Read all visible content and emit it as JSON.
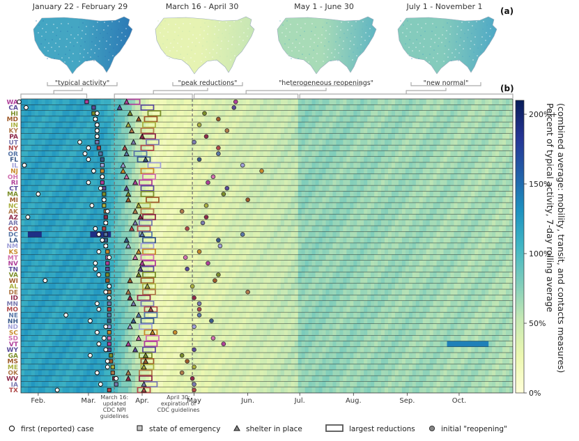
{
  "panel_a": {
    "label": "(a)",
    "maps": [
      {
        "title": "January 22 - February 29",
        "caption": "\"typical activity\"",
        "tone": "#44a6c3",
        "east": "#2b78b5"
      },
      {
        "title": "March 16 - April 30",
        "caption": "\"peak reductions\"",
        "tone": "#e6f3b2",
        "east": "#c6e6b4"
      },
      {
        "title": "May 1 - June 30",
        "caption": "\"heterogeneous reopenings\"",
        "tone": "#a8dbb7",
        "east": "#5fb5c2"
      },
      {
        "title": "July 1 - November 1",
        "caption": "\"new normal\"",
        "tone": "#84cbbc",
        "east": "#4ea8c5"
      }
    ]
  },
  "panel_b": {
    "label": "(b)"
  },
  "colors": {
    "cmap": [
      "#ffffd9",
      "#edf8b1",
      "#c7e9b4",
      "#7fcdbb",
      "#41b6c4",
      "#1d91c0",
      "#225ea8",
      "#253494",
      "#081d58"
    ],
    "palette": [
      "#b0409a",
      "#5a4b9a",
      "#7b8e2a",
      "#9e5a2a",
      "#aab040",
      "#b07a4a",
      "#8e2a4a",
      "#7a7ab0",
      "#b04a4a",
      "#5a78a8",
      "#3a5a8a",
      "#a0a0d8",
      "#c88a2a",
      "#d070b0"
    ]
  },
  "chart_data": {
    "type": "heatmap",
    "x_axis": {
      "type": "date",
      "range": [
        "2020-01-22",
        "2020-11-01"
      ],
      "ticks": [
        "Feb.",
        "Mar.",
        "Apr.",
        "May",
        "Jun.",
        "Jul.",
        "Aug.",
        "Sep.",
        "Oct."
      ]
    },
    "colorbar": {
      "label_line1": "Percent of typical activity, 7-day rolling average",
      "label_line2": "(combined average: mobility, transit, and contacts measures)",
      "ticks": [
        "0%",
        "50%",
        "100%",
        "150%",
        "200%+"
      ],
      "range": [
        0,
        210
      ]
    },
    "annotations": [
      {
        "date": "2020-03-16",
        "text": [
          "March 16:",
          "updated",
          "CDC NPI",
          "guidelines"
        ]
      },
      {
        "date": "2020-04-30",
        "text": [
          "April 30:",
          "expiration of",
          "CDC guidelines"
        ]
      }
    ],
    "legend": {
      "first_case": "first (reported) case",
      "emergency": "state of emergency",
      "shelter": "shelter in place",
      "largest": "largest reductions",
      "reopening": "initial \"reopening\""
    },
    "rows": [
      {
        "state": "WA",
        "first_case": "2020-01-21",
        "emergency": "2020-02-29",
        "shelter": "2020-03-23",
        "largest": "2020-03-27",
        "reopening": "2020-05-25"
      },
      {
        "state": "CA",
        "first_case": "2020-01-25",
        "emergency": "2020-03-04",
        "shelter": "2020-03-19",
        "largest": "2020-04-04",
        "reopening": "2020-05-24"
      },
      {
        "state": "HI",
        "first_case": "2020-03-06",
        "emergency": "2020-03-04",
        "shelter": "2020-03-25",
        "largest": "2020-04-08",
        "reopening": "2020-05-07"
      },
      {
        "state": "MD",
        "first_case": "2020-03-05",
        "emergency": "2020-03-05",
        "shelter": "2020-03-30",
        "largest": "2020-04-06",
        "reopening": "2020-05-15"
      },
      {
        "state": "IN",
        "first_case": "2020-03-06",
        "emergency": "2020-03-06",
        "shelter": "2020-03-24",
        "largest": "2020-04-05",
        "reopening": "2020-05-04"
      },
      {
        "state": "KY",
        "first_case": "2020-03-06",
        "emergency": "2020-03-06",
        "shelter": "2020-03-26",
        "largest": "2020-04-04",
        "reopening": "2020-05-20"
      },
      {
        "state": "PA",
        "first_case": "2020-03-06",
        "emergency": "2020-03-06",
        "shelter": "2020-04-01",
        "largest": "2020-04-05",
        "reopening": "2020-05-08"
      },
      {
        "state": "UT",
        "first_case": "2020-02-25",
        "emergency": "2020-03-06",
        "shelter": "2020-03-27",
        "largest": "2020-04-07",
        "reopening": "2020-05-01"
      },
      {
        "state": "NY",
        "first_case": "2020-03-01",
        "emergency": "2020-03-07",
        "shelter": "2020-03-22",
        "largest": "2020-04-04",
        "reopening": "2020-05-15"
      },
      {
        "state": "OR",
        "first_case": "2020-02-28",
        "emergency": "2020-03-08",
        "shelter": "2020-03-23",
        "largest": "2020-03-31",
        "reopening": "2020-05-15"
      },
      {
        "state": "FL",
        "first_case": "2020-03-01",
        "emergency": "2020-03-09",
        "shelter": "2020-04-03",
        "largest": "2020-04-02",
        "reopening": "2020-05-04"
      },
      {
        "state": "IL",
        "first_case": "2020-01-24",
        "emergency": "2020-03-09",
        "shelter": "2020-03-21",
        "largest": "2020-04-08",
        "reopening": "2020-05-29"
      },
      {
        "state": "NJ",
        "first_case": "2020-03-04",
        "emergency": "2020-03-09",
        "shelter": "2020-03-21",
        "largest": "2020-04-04",
        "reopening": "2020-06-09"
      },
      {
        "state": "OH",
        "first_case": "2020-03-09",
        "emergency": "2020-03-09",
        "shelter": "2020-03-23",
        "largest": "2020-04-05",
        "reopening": "2020-05-12"
      },
      {
        "state": "RI",
        "first_case": "2020-03-01",
        "emergency": "2020-03-09",
        "shelter": "2020-03-28",
        "largest": "2020-04-03",
        "reopening": "2020-05-09"
      },
      {
        "state": "CT",
        "first_case": "2020-03-08",
        "emergency": "2020-03-10",
        "shelter": "2020-03-23",
        "largest": "2020-04-04",
        "reopening": "2020-05-20"
      },
      {
        "state": "MA",
        "first_case": "2020-02-01",
        "emergency": "2020-03-10",
        "shelter": "2020-03-24",
        "largest": "2020-04-04",
        "reopening": "2020-05-18"
      },
      {
        "state": "MI",
        "first_case": "2020-03-10",
        "emergency": "2020-03-10",
        "shelter": "2020-03-24",
        "largest": "2020-04-07",
        "reopening": "2020-06-01"
      },
      {
        "state": "NC",
        "first_case": "2020-03-03",
        "emergency": "2020-03-10",
        "shelter": "2020-03-30",
        "largest": "2020-04-02",
        "reopening": "2020-05-08"
      },
      {
        "state": "AK",
        "first_case": "2020-03-12",
        "emergency": "2020-03-11",
        "shelter": "2020-03-28",
        "largest": "2020-04-04",
        "reopening": "2020-04-24"
      },
      {
        "state": "AZ",
        "first_case": "2020-01-26",
        "emergency": "2020-03-11",
        "shelter": "2020-03-31",
        "largest": "2020-04-05",
        "reopening": "2020-05-08"
      },
      {
        "state": "AR",
        "first_case": "2020-03-11",
        "emergency": "2020-03-11",
        "shelter": "2020-03-28",
        "largest": "2020-04-03",
        "reopening": "2020-05-06"
      },
      {
        "state": "CO",
        "first_case": "2020-03-05",
        "emergency": "2020-03-10",
        "shelter": "2020-03-26",
        "largest": "2020-04-02",
        "reopening": "2020-04-27"
      },
      {
        "state": "DC",
        "first_case": "2020-03-07",
        "emergency": "2020-03-11",
        "shelter": "2020-04-01",
        "largest": "2020-04-03",
        "reopening": "2020-05-29"
      },
      {
        "state": "LA",
        "first_case": "2020-03-09",
        "emergency": "2020-03-11",
        "shelter": "2020-03-23",
        "largest": "2020-04-05",
        "reopening": "2020-05-15"
      },
      {
        "state": "NM",
        "first_case": "2020-03-11",
        "emergency": "2020-03-11",
        "shelter": "2020-03-24",
        "largest": "2020-04-04",
        "reopening": "2020-05-16"
      },
      {
        "state": "KS",
        "first_case": "2020-03-07",
        "emergency": "2020-03-12",
        "shelter": "2020-03-30",
        "largest": "2020-04-05",
        "reopening": "2020-05-04"
      },
      {
        "state": "MT",
        "first_case": "2020-03-13",
        "emergency": "2020-03-12",
        "shelter": "2020-03-28",
        "largest": "2020-04-04",
        "reopening": "2020-04-26"
      },
      {
        "state": "NV",
        "first_case": "2020-03-05",
        "emergency": "2020-03-12",
        "shelter": "2020-04-01",
        "largest": "2020-04-05",
        "reopening": "2020-05-09"
      },
      {
        "state": "TN",
        "first_case": "2020-03-05",
        "emergency": "2020-03-12",
        "shelter": "2020-03-31",
        "largest": "2020-04-04",
        "reopening": "2020-04-27"
      },
      {
        "state": "VA",
        "first_case": "2020-03-07",
        "emergency": "2020-03-12",
        "shelter": "2020-03-30",
        "largest": "2020-04-05",
        "reopening": "2020-05-15"
      },
      {
        "state": "WI",
        "first_case": "2020-02-05",
        "emergency": "2020-03-12",
        "shelter": "2020-03-25",
        "largest": "2020-04-04",
        "reopening": "2020-05-13"
      },
      {
        "state": "AL",
        "first_case": "2020-03-13",
        "emergency": "2020-03-13",
        "shelter": "2020-04-04",
        "largest": "2020-04-05",
        "reopening": "2020-04-30"
      },
      {
        "state": "DE",
        "first_case": "2020-03-11",
        "emergency": "2020-03-13",
        "shelter": "2020-03-24",
        "largest": "2020-04-05",
        "reopening": "2020-06-01"
      },
      {
        "state": "ID",
        "first_case": "2020-03-13",
        "emergency": "2020-03-13",
        "shelter": "2020-03-25",
        "largest": "2020-04-02",
        "reopening": "2020-05-01"
      },
      {
        "state": "MN",
        "first_case": "2020-03-06",
        "emergency": "2020-03-13",
        "shelter": "2020-03-27",
        "largest": "2020-04-04",
        "reopening": "2020-05-04"
      },
      {
        "state": "MO",
        "first_case": "2020-03-07",
        "emergency": "2020-03-13",
        "shelter": "2020-04-06",
        "largest": "2020-04-06",
        "reopening": "2020-05-04"
      },
      {
        "state": "NE",
        "first_case": "2020-02-17",
        "emergency": "2020-03-13",
        "shelter": "2020-03-30",
        "largest": "2020-04-06",
        "reopening": "2020-05-04"
      },
      {
        "state": "NH",
        "first_case": "2020-03-02",
        "emergency": "2020-03-13",
        "shelter": "2020-03-27",
        "largest": "2020-04-04",
        "reopening": "2020-05-11"
      },
      {
        "state": "ND",
        "first_case": "2020-03-11",
        "emergency": "2020-03-13",
        "shelter": "2020-03-25",
        "largest": "2020-04-03",
        "reopening": "2020-05-01"
      },
      {
        "state": "SC",
        "first_case": "2020-03-06",
        "emergency": "2020-03-13",
        "shelter": "2020-04-07",
        "largest": "2020-04-06",
        "reopening": "2020-04-20"
      },
      {
        "state": "SD",
        "first_case": "2020-03-10",
        "emergency": "2020-03-13",
        "shelter": "2020-03-30",
        "largest": "2020-04-07",
        "reopening": "2020-05-12"
      },
      {
        "state": "VT",
        "first_case": "2020-03-07",
        "emergency": "2020-03-13",
        "shelter": "2020-03-24",
        "largest": "2020-04-06",
        "reopening": "2020-05-18"
      },
      {
        "state": "WY",
        "first_case": "2020-03-11",
        "emergency": "2020-03-13",
        "shelter": "2020-03-28",
        "largest": "2020-04-05",
        "reopening": "2020-05-01"
      },
      {
        "state": "GA",
        "first_case": "2020-03-02",
        "emergency": "2020-03-14",
        "shelter": "2020-04-03",
        "largest": "2020-04-03",
        "reopening": "2020-04-24"
      },
      {
        "state": "MS",
        "first_case": "2020-03-12",
        "emergency": "2020-03-14",
        "shelter": "2020-04-03",
        "largest": "2020-04-04",
        "reopening": "2020-04-27"
      },
      {
        "state": "ME",
        "first_case": "2020-03-12",
        "emergency": "2020-03-15",
        "shelter": "2020-04-02",
        "largest": "2020-04-04",
        "reopening": "2020-05-01"
      },
      {
        "state": "OK",
        "first_case": "2020-03-06",
        "emergency": "2020-03-15",
        "shelter": "2020-03-24",
        "largest": "2020-04-03",
        "reopening": "2020-04-24"
      },
      {
        "state": "WV",
        "first_case": "2020-03-17",
        "emergency": "2020-03-16",
        "shelter": "2020-03-24",
        "largest": "2020-04-03",
        "reopening": "2020-04-30"
      },
      {
        "state": "IA",
        "first_case": "2020-03-08",
        "emergency": "2020-03-17",
        "shelter": "2020-04-02",
        "largest": "2020-04-06",
        "reopening": "2020-05-01"
      },
      {
        "state": "TX",
        "first_case": "2020-02-12",
        "emergency": "2020-03-13",
        "shelter": "2020-04-02",
        "largest": "2020-04-02",
        "reopening": "2020-05-01"
      }
    ]
  }
}
